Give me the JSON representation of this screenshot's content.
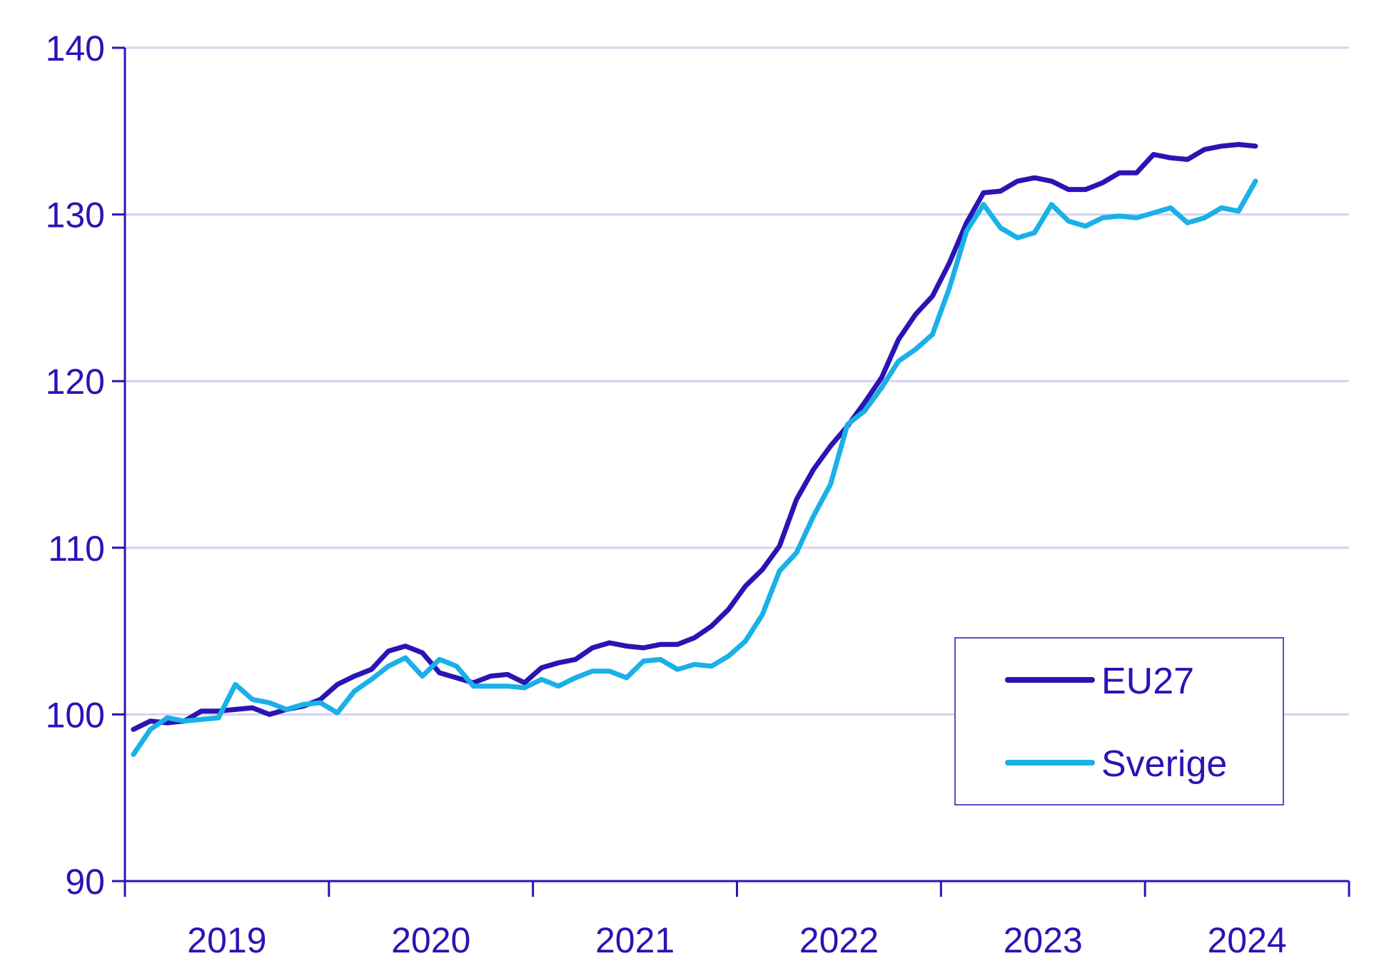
{
  "chart_data": {
    "type": "line",
    "title": "",
    "xlabel": "",
    "ylabel": "",
    "ylim": [
      90,
      140
    ],
    "yticks": [
      90,
      100,
      110,
      120,
      130,
      140
    ],
    "xlim": [
      0,
      72
    ],
    "xtick_labels": [
      "2019",
      "2020",
      "2021",
      "2022",
      "2023",
      "2024"
    ],
    "grid": "horizontal",
    "legend_position": "bottom-right",
    "colors": {
      "axis": "#2a14b4",
      "grid": "#d6d3ee",
      "text": "#2a14b4"
    },
    "series": [
      {
        "name": "EU27",
        "color": "#2a14b4",
        "values": [
          99.1,
          99.6,
          99.5,
          99.6,
          100.2,
          100.2,
          100.3,
          100.4,
          100.0,
          100.3,
          100.5,
          100.9,
          101.8,
          102.3,
          102.7,
          103.8,
          104.1,
          103.7,
          102.5,
          102.2,
          101.9,
          102.3,
          102.4,
          101.9,
          102.8,
          103.1,
          103.3,
          104.0,
          104.3,
          104.1,
          104.0,
          104.2,
          104.2,
          104.6,
          105.3,
          106.3,
          107.7,
          108.7,
          110.1,
          112.9,
          114.7,
          116.1,
          117.3,
          118.7,
          120.2,
          122.5,
          124.0,
          125.1,
          127.1,
          129.5,
          131.3,
          131.4,
          132.0,
          132.2,
          132.0,
          131.5,
          131.5,
          131.9,
          132.5,
          132.5,
          133.6,
          133.4,
          133.3,
          133.9,
          134.1,
          134.2,
          134.1
        ],
        "x_start": 0.5
      },
      {
        "name": "Sverige",
        "color": "#1ab0e8",
        "values": [
          97.6,
          99.1,
          99.8,
          99.6,
          99.7,
          99.8,
          101.8,
          100.9,
          100.7,
          100.3,
          100.6,
          100.7,
          100.1,
          101.4,
          102.1,
          102.9,
          103.4,
          102.3,
          103.3,
          102.9,
          101.7,
          101.7,
          101.7,
          101.6,
          102.1,
          101.7,
          102.2,
          102.6,
          102.6,
          102.2,
          103.2,
          103.3,
          102.7,
          103.0,
          102.9,
          103.5,
          104.4,
          106.0,
          108.6,
          109.7,
          111.9,
          113.8,
          117.4,
          118.2,
          119.6,
          121.2,
          121.9,
          122.8,
          125.6,
          129.0,
          130.6,
          129.2,
          128.6,
          128.9,
          130.6,
          129.6,
          129.3,
          129.8,
          129.9,
          129.8,
          130.1,
          130.4,
          129.5,
          129.8,
          130.4,
          130.2,
          132.0
        ],
        "x_start": 0.5
      }
    ]
  }
}
